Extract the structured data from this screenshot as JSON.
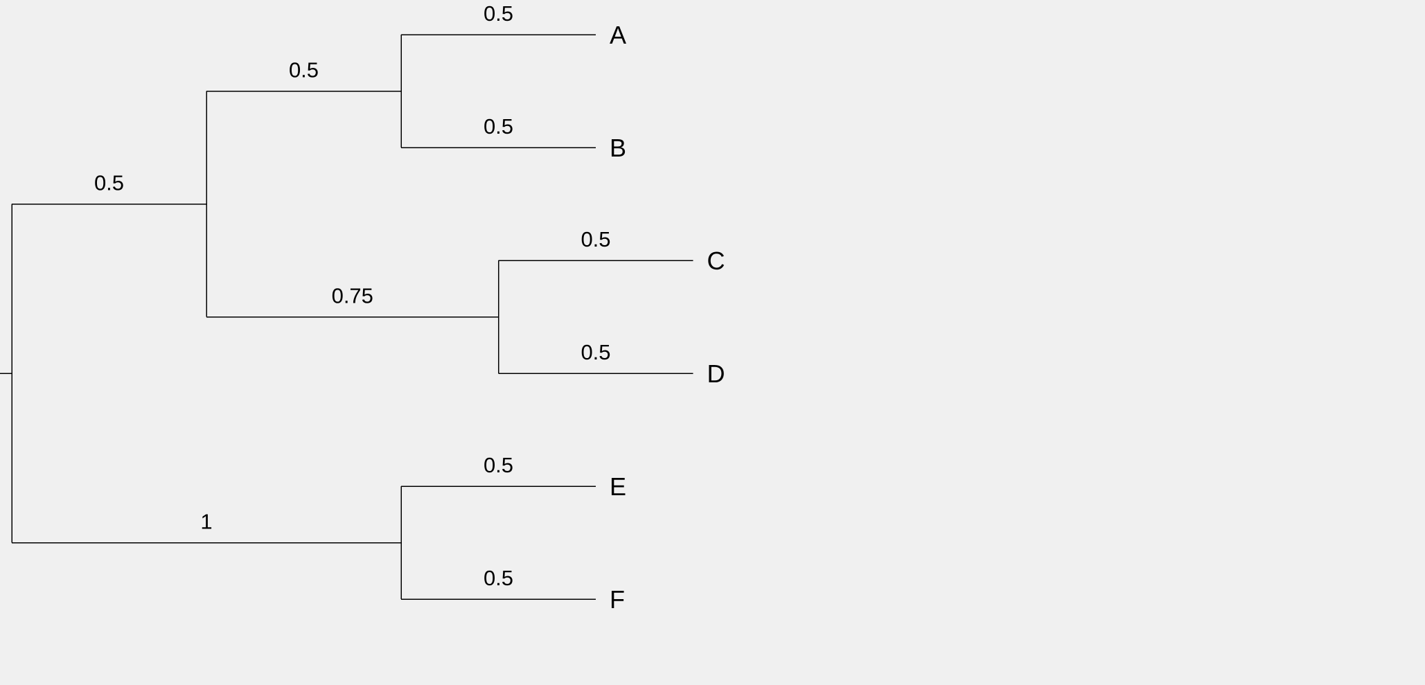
{
  "diagram": {
    "type": "dendrogram",
    "orientation": "left-to-right",
    "background": "#f0f0f0",
    "line_color": "#000000",
    "root": {
      "id": "root",
      "children": [
        {
          "id": "n1",
          "length": 0.5,
          "label": "0.5",
          "children": [
            {
              "id": "n2",
              "length": 0.5,
              "label": "0.5",
              "children": [
                {
                  "id": "A",
                  "name": "A",
                  "length": 0.5,
                  "label": "0.5"
                },
                {
                  "id": "B",
                  "name": "B",
                  "length": 0.5,
                  "label": "0.5"
                }
              ]
            },
            {
              "id": "n3",
              "length": 0.75,
              "label": "0.75",
              "children": [
                {
                  "id": "C",
                  "name": "C",
                  "length": 0.5,
                  "label": "0.5"
                },
                {
                  "id": "D",
                  "name": "D",
                  "length": 0.5,
                  "label": "0.5"
                }
              ]
            }
          ]
        },
        {
          "id": "n4",
          "length": 1,
          "label": "1",
          "children": [
            {
              "id": "E",
              "name": "E",
              "length": 0.5,
              "label": "0.5"
            },
            {
              "id": "F",
              "name": "F",
              "length": 0.5,
              "label": "0.5"
            }
          ]
        }
      ]
    }
  }
}
